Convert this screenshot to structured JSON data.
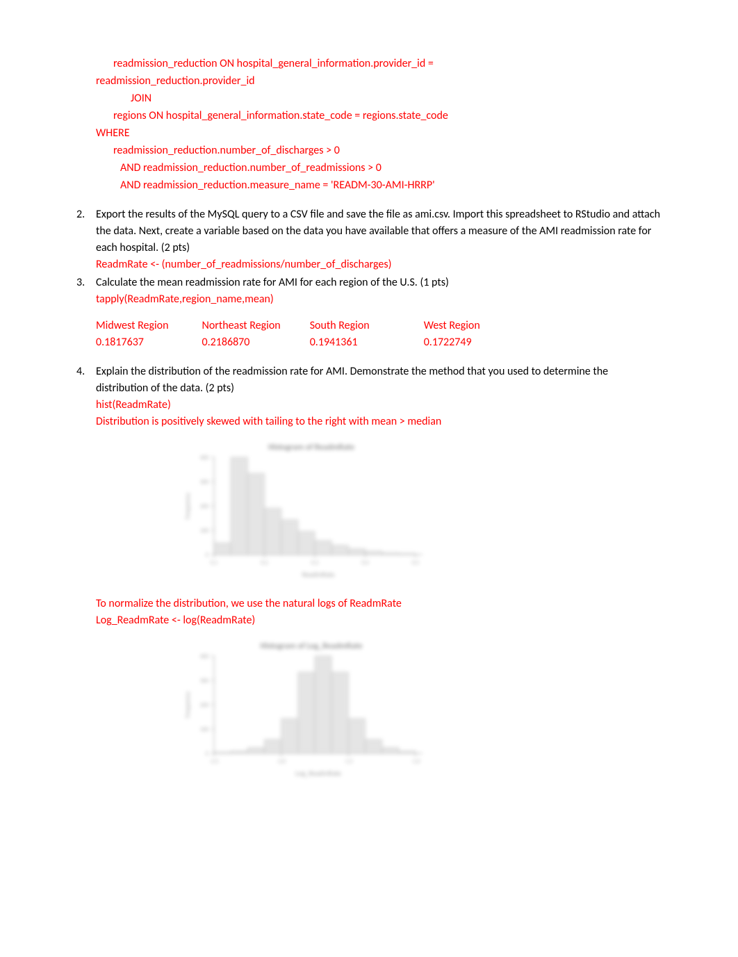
{
  "sql": {
    "line1": "readmission_reduction ON hospital_general_information.provider_id =",
    "line2": "readmission_reduction.provider_id",
    "join": "JOIN",
    "line3": "regions ON hospital_general_information.state_code = regions.state_code",
    "where": "WHERE",
    "line4": "readmission_reduction.number_of_discharges > 0",
    "line5": "AND readmission_reduction.number_of_readmissions > 0",
    "line6": "AND readmission_reduction.measure_name = 'READM-30-AMI-HRRP'"
  },
  "q2": {
    "num": "2.",
    "text": "Export the results of the MySQL query to a CSV file and save the file as ami.csv. Import this spreadsheet to RStudio and attach the data. Next, create a variable based on the data you have available that offers a measure of the AMI readmission rate for each hospital. (2 pts)",
    "code": "ReadmRate <- (number_of_readmissions/number_of_discharges)"
  },
  "q3": {
    "num": "3.",
    "text": "Calculate the mean readmission rate for AMI for each region of the U.S. (1 pts)",
    "code": "tapply(ReadmRate,region_name,mean)",
    "table": {
      "headers": [
        "Midwest Region",
        "Northeast Region",
        "South Region",
        "West Region"
      ],
      "values": [
        "0.1817637",
        "0.2186870",
        "0.1941361",
        "0.1722749"
      ]
    }
  },
  "q4": {
    "num": "4.",
    "text": "Explain the distribution of the readmission rate for AMI. Demonstrate the method that you used to determine the distribution of the data. (2 pts)",
    "code1": "hist(ReadmRate)",
    "desc1": "Distribution is positively skewed with tailing to the right with mean > median",
    "desc2": "To normalize the distribution, we use the natural logs of ReadmRate",
    "code2": "Log_ReadmRate <- log(ReadmRate)",
    "hist1": {
      "title": "Histogram of ReadmRate",
      "xlabel": "ReadmRate",
      "ylabel": "Frequency",
      "bars": [
        50,
        420,
        350,
        200,
        150,
        100,
        60,
        40,
        25,
        15,
        8,
        5
      ],
      "yticks": [
        "0",
        "100",
        "200",
        "300",
        "400"
      ],
      "xticks": [
        "0.1",
        "0.2",
        "0.3",
        "0.4",
        "0.5"
      ],
      "bar_color": "#d0d0d0",
      "border_color": "#666"
    },
    "hist2": {
      "title": "Histogram of Log_ReadmRate",
      "xlabel": "Log_ReadmRate",
      "ylabel": "Frequency",
      "bars": [
        5,
        10,
        25,
        60,
        150,
        350,
        420,
        350,
        150,
        60,
        25,
        10
      ],
      "yticks": [
        "0",
        "100",
        "200",
        "300",
        "400"
      ],
      "xticks": [
        "-2.5",
        "-2.0",
        "-1.5",
        "-1.0"
      ],
      "bar_color": "#d0d0d0",
      "border_color": "#666"
    }
  },
  "colors": {
    "red": "#ff0000",
    "black": "#000000"
  }
}
